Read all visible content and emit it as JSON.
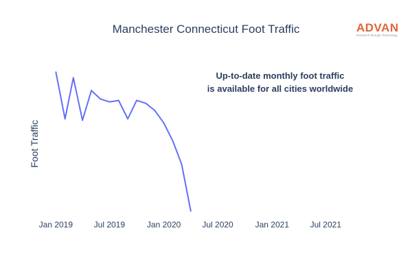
{
  "chart_data": {
    "type": "line",
    "title": "Manchester Connecticut Foot Traffic",
    "ylabel": "Foot Traffic",
    "xlabel": "",
    "x_ticks": [
      "Jan 2019",
      "Jul 2019",
      "Jan 2020",
      "Jul 2020",
      "Jan 2021",
      "Jul 2021"
    ],
    "x_range": [
      "2018-12-01",
      "2021-10-15"
    ],
    "y_ticks_shown": false,
    "grid": false,
    "y_range": [
      0,
      102
    ],
    "series": [
      {
        "color": "#636efa",
        "x": [
          "2019-01-01",
          "2019-02-01",
          "2019-03-01",
          "2019-04-01",
          "2019-05-01",
          "2019-06-01",
          "2019-07-01",
          "2019-08-01",
          "2019-09-01",
          "2019-10-01",
          "2019-11-01",
          "2019-12-01",
          "2020-01-01",
          "2020-02-01",
          "2020-03-01",
          "2020-04-01"
        ],
        "y": [
          98,
          65,
          94,
          64,
          85,
          79,
          77,
          78,
          65,
          78,
          76,
          71,
          62,
          49,
          33,
          0
        ]
      }
    ],
    "annotation": {
      "line1": "Up-to-date monthly foot traffic",
      "line2": "is available for all cities worldwide"
    }
  },
  "logo": {
    "name": "ADVAN",
    "tagline": "Research through Technology",
    "color": "#e0653a"
  }
}
